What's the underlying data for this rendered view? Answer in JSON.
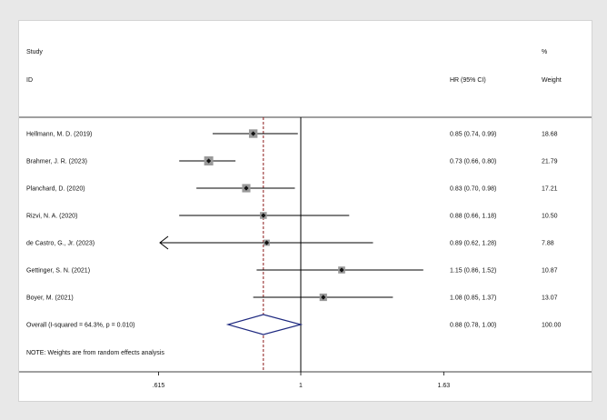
{
  "chart_data": {
    "type": "forest",
    "headers": {
      "study_line1": "Study",
      "study_line2": "ID",
      "hr": "HR (95% CI)",
      "weight_line1": "%",
      "weight_line2": "Weight"
    },
    "studies": [
      {
        "name": "Hellmann, M. D. (2019)",
        "hr": 0.85,
        "lo": 0.74,
        "hi": 0.99,
        "ci_text": "0.85 (0.74, 0.99)",
        "weight": "18.68",
        "arrow_left": false
      },
      {
        "name": "Brahmer, J. R. (2023)",
        "hr": 0.73,
        "lo": 0.66,
        "hi": 0.8,
        "ci_text": "0.73 (0.66, 0.80)",
        "weight": "21.79",
        "arrow_left": false
      },
      {
        "name": "Planchard, D. (2020)",
        "hr": 0.83,
        "lo": 0.7,
        "hi": 0.98,
        "ci_text": "0.83 (0.70, 0.98)",
        "weight": "17.21",
        "arrow_left": false
      },
      {
        "name": "Rizvi, N. A. (2020)",
        "hr": 0.88,
        "lo": 0.66,
        "hi": 1.18,
        "ci_text": "0.88 (0.66, 1.18)",
        "weight": "10.50",
        "arrow_left": false
      },
      {
        "name": "de Castro, G., Jr. (2023)",
        "hr": 0.89,
        "lo": 0.62,
        "hi": 1.28,
        "ci_text": "0.89 (0.62, 1.28)",
        "weight": "7.88",
        "arrow_left": true
      },
      {
        "name": "Gettinger, S. N. (2021)",
        "hr": 1.15,
        "lo": 0.86,
        "hi": 1.52,
        "ci_text": "1.15 (0.86, 1.52)",
        "weight": "10.87",
        "arrow_left": false
      },
      {
        "name": "Boyer, M. (2021)",
        "hr": 1.08,
        "lo": 0.85,
        "hi": 1.37,
        "ci_text": "1.08 (0.85, 1.37)",
        "weight": "13.07",
        "arrow_left": false
      }
    ],
    "overall": {
      "label": "Overall  (I-squared = 64.3%, p = 0.010)",
      "hr": 0.88,
      "lo": 0.78,
      "hi": 1.0,
      "ci_text": "0.88 (0.78, 1.00)",
      "weight": "100.00"
    },
    "note": "NOTE: Weights are from random effects analysis",
    "x_axis": {
      "scale": "log",
      "range": [
        0.615,
        1.63
      ],
      "ticks": [
        0.615,
        1,
        1.63
      ],
      "tick_labels": [
        ".615",
        "1",
        "1.63"
      ]
    },
    "reference_line": 1,
    "colors": {
      "line": "#000000",
      "box": "#9a9a9a",
      "dashed": "#8b1a1a",
      "diamond": "#1f2a80"
    }
  }
}
